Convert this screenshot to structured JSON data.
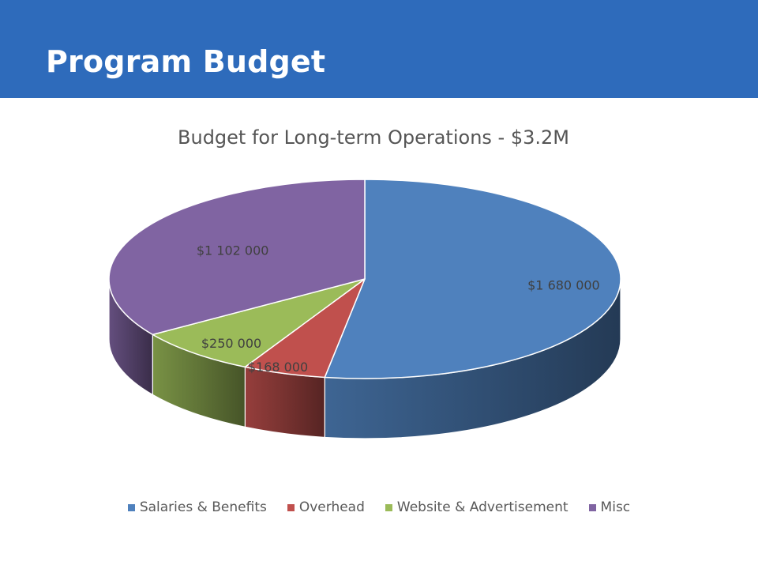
{
  "slide": {
    "title": "Program Budget",
    "header_color": "#2e6bbb"
  },
  "chart_data": {
    "type": "pie",
    "title": "Budget for Long-term Operations - $3.2M",
    "categories": [
      "Salaries & Benefits",
      "Overhead",
      "Website & Advertisement",
      "Misc"
    ],
    "values": [
      1680000,
      168000,
      250000,
      1102000
    ],
    "data_labels": [
      "$1 680 000",
      "$168 000",
      "$250 000",
      "$1 102 000"
    ],
    "colors": [
      "#4f81bd",
      "#c0504d",
      "#9bbb59",
      "#8064a2"
    ],
    "legend_position": "bottom",
    "style": "3d"
  }
}
